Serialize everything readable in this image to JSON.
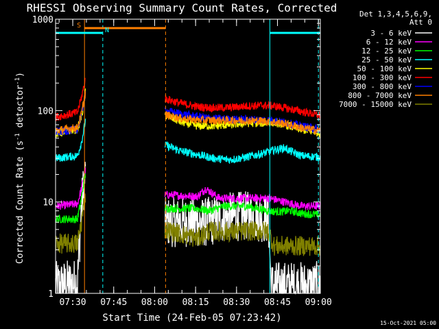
{
  "chart_data": {
    "type": "line",
    "title": "RHESSI Observing Summary Count Rates, Corrected",
    "xlabel": "Start Time (24-Feb-05 07:23:42)",
    "ylabel_main": "Corrected Count Rate (s",
    "ylabel_sup1": "-1",
    "ylabel_mid": " detector",
    "ylabel_sup2": "-1",
    "ylabel_end": ")",
    "yscale": "log",
    "ylim": [
      1,
      1000
    ],
    "xlim_minutes": [
      0,
      97
    ],
    "x_ticks": [
      {
        "label": "07:30",
        "minute": 6.3
      },
      {
        "label": "07:45",
        "minute": 21.3
      },
      {
        "label": "08:00",
        "minute": 36.3
      },
      {
        "label": "08:15",
        "minute": 51.3
      },
      {
        "label": "08:30",
        "minute": 66.3
      },
      {
        "label": "08:45",
        "minute": 81.3
      },
      {
        "label": "09:00",
        "minute": 96.3
      }
    ],
    "y_ticks": [
      {
        "label": "1",
        "value": 1
      },
      {
        "label": "10",
        "value": 10
      },
      {
        "label": "100",
        "value": 100
      },
      {
        "label": "1000",
        "value": 1000
      }
    ],
    "legend_header": [
      "Det 1,3,4,5,6,9,",
      "Att 0"
    ],
    "gaps": [
      [
        11,
        40
      ]
    ],
    "series": [
      {
        "name": "3 - 6 keV",
        "color": "#ffffff",
        "points": [
          [
            0,
            1.2
          ],
          [
            8,
            1.3
          ],
          [
            9.5,
            9
          ],
          [
            10.5,
            17
          ],
          [
            11,
            20
          ],
          [
            40,
            6
          ],
          [
            50,
            6
          ],
          [
            55,
            6
          ],
          [
            60,
            6.5
          ],
          [
            66,
            7
          ],
          [
            73,
            7
          ],
          [
            78,
            6.5
          ],
          [
            79,
            1.2
          ],
          [
            97,
            1.2
          ]
        ]
      },
      {
        "name": "6 - 12 keV",
        "color": "#ff00ff",
        "points": [
          [
            0,
            9
          ],
          [
            8,
            9.5
          ],
          [
            9.5,
            14
          ],
          [
            10.5,
            20
          ],
          [
            11,
            22
          ],
          [
            40,
            12
          ],
          [
            52,
            11.5
          ],
          [
            55,
            14
          ],
          [
            60,
            11
          ],
          [
            66,
            11
          ],
          [
            73,
            11
          ],
          [
            78,
            11
          ],
          [
            84,
            10
          ],
          [
            90,
            9
          ],
          [
            97,
            9
          ]
        ]
      },
      {
        "name": "12 - 25 keV",
        "color": "#00ff00",
        "points": [
          [
            0,
            6.5
          ],
          [
            8,
            6.5
          ],
          [
            9.5,
            11
          ],
          [
            10.5,
            18
          ],
          [
            11,
            20
          ],
          [
            40,
            8.5
          ],
          [
            52,
            8.5
          ],
          [
            56,
            8
          ],
          [
            62,
            9
          ],
          [
            70,
            9
          ],
          [
            78,
            8
          ],
          [
            82,
            7.8
          ],
          [
            86,
            8
          ],
          [
            90,
            7.5
          ],
          [
            97,
            7.2
          ]
        ]
      },
      {
        "name": "25 - 50 keV",
        "color": "#00ffff",
        "points": [
          [
            0,
            30
          ],
          [
            4,
            31
          ],
          [
            8,
            32
          ],
          [
            9.5,
            45
          ],
          [
            10.5,
            65
          ],
          [
            11,
            80
          ],
          [
            40,
            42
          ],
          [
            46,
            36
          ],
          [
            52,
            33
          ],
          [
            58,
            30
          ],
          [
            64,
            29
          ],
          [
            70,
            31
          ],
          [
            76,
            34
          ],
          [
            80,
            37
          ],
          [
            84,
            39
          ],
          [
            86,
            36
          ],
          [
            90,
            32
          ],
          [
            97,
            31
          ]
        ]
      },
      {
        "name": "50 - 100 keV",
        "color": "#ffff00",
        "points": [
          [
            0,
            55
          ],
          [
            4,
            60
          ],
          [
            8,
            62
          ],
          [
            9.5,
            85
          ],
          [
            10.5,
            125
          ],
          [
            11,
            165
          ],
          [
            40,
            90
          ],
          [
            46,
            75
          ],
          [
            52,
            68
          ],
          [
            58,
            68
          ],
          [
            64,
            70
          ],
          [
            70,
            73
          ],
          [
            76,
            73
          ],
          [
            80,
            74
          ],
          [
            84,
            70
          ],
          [
            90,
            62
          ],
          [
            97,
            57
          ]
        ]
      },
      {
        "name": "100 - 300 keV",
        "color": "#ff0000",
        "points": [
          [
            0,
            85
          ],
          [
            4,
            90
          ],
          [
            8,
            95
          ],
          [
            9.5,
            140
          ],
          [
            10.5,
            190
          ],
          [
            11,
            230
          ],
          [
            40,
            135
          ],
          [
            46,
            120
          ],
          [
            52,
            110
          ],
          [
            58,
            107
          ],
          [
            64,
            108
          ],
          [
            70,
            112
          ],
          [
            76,
            114
          ],
          [
            80,
            112
          ],
          [
            84,
            107
          ],
          [
            90,
            98
          ],
          [
            97,
            88
          ]
        ]
      },
      {
        "name": "300 - 800 keV",
        "color": "#0000ff",
        "points": [
          [
            0,
            58
          ],
          [
            4,
            60
          ],
          [
            8,
            62
          ],
          [
            9.5,
            90
          ],
          [
            10.5,
            130
          ],
          [
            11,
            150
          ],
          [
            40,
            100
          ],
          [
            46,
            92
          ],
          [
            52,
            86
          ],
          [
            58,
            82
          ],
          [
            64,
            80
          ],
          [
            70,
            80
          ],
          [
            76,
            79
          ],
          [
            80,
            78
          ],
          [
            84,
            74
          ],
          [
            90,
            68
          ],
          [
            97,
            62
          ]
        ]
      },
      {
        "name": "800 - 7000 keV",
        "color": "#ff8000",
        "points": [
          [
            0,
            60
          ],
          [
            4,
            63
          ],
          [
            8,
            65
          ],
          [
            9.5,
            92
          ],
          [
            10.5,
            135
          ],
          [
            11,
            160
          ],
          [
            40,
            90
          ],
          [
            46,
            82
          ],
          [
            52,
            79
          ],
          [
            58,
            78
          ],
          [
            64,
            78
          ],
          [
            70,
            78
          ],
          [
            76,
            77
          ],
          [
            80,
            75
          ],
          [
            84,
            72
          ],
          [
            90,
            65
          ],
          [
            97,
            60
          ]
        ]
      },
      {
        "name": "7000 - 15000 keV",
        "color": "#808000",
        "points": [
          [
            0,
            3.5
          ],
          [
            8,
            3.5
          ],
          [
            9.5,
            6
          ],
          [
            10.5,
            10
          ],
          [
            11,
            12
          ],
          [
            40,
            5
          ],
          [
            52,
            4
          ],
          [
            56,
            4.8
          ],
          [
            62,
            4.7
          ],
          [
            70,
            4.8
          ],
          [
            76,
            4.8
          ],
          [
            78,
            4.8
          ],
          [
            80,
            3.3
          ],
          [
            97,
            3.3
          ]
        ]
      }
    ],
    "annotations": {
      "flag_lines": [
        {
          "label": "S",
          "color": "#ff8000",
          "row": 1,
          "ranges": [
            [
              10.6,
              40.3
            ]
          ]
        },
        {
          "label": "N",
          "color": "#00ffff",
          "row": 2,
          "ranges": [
            [
              0,
              17.3
            ],
            [
              78.5,
              97
            ]
          ]
        }
      ],
      "vertical_markers": [
        {
          "minute": 10.6,
          "color": "#ff8000",
          "style": "solid"
        },
        {
          "minute": 17.3,
          "color": "#00ffff",
          "style": "dashed"
        },
        {
          "minute": 40.3,
          "color": "#ff8000",
          "style": "dashed"
        },
        {
          "minute": 78.5,
          "color": "#00ffff",
          "style": "solid"
        },
        {
          "minute": 96.3,
          "color": "#00ffff",
          "style": "dashed"
        }
      ]
    }
  },
  "footer": {
    "timestamp": "15-Oct-2021 05:00"
  }
}
